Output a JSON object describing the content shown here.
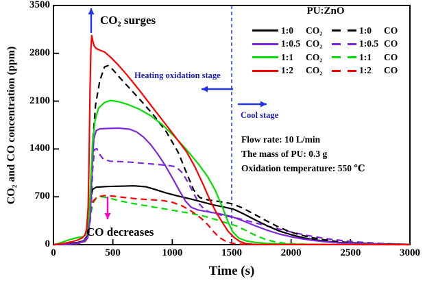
{
  "figure": {
    "xlabel": "Time (s)",
    "ylabel": "CO₂ and CO concentration (ppm)"
  },
  "legend": {
    "title": "PU:ZnO",
    "rows": [
      {
        "color": "#000000",
        "solid_label": "1:0",
        "solid_gas": "CO₂",
        "dashed_label": "1:0",
        "dashed_gas": "CO"
      },
      {
        "color": "#7D26DB",
        "solid_label": "1:0.5",
        "solid_gas": "CO₂",
        "dashed_label": "1:0.5",
        "dashed_gas": "CO"
      },
      {
        "color": "#00DF00",
        "solid_label": "1:1",
        "solid_gas": "CO₂",
        "dashed_label": "1:1",
        "dashed_gas": "CO"
      },
      {
        "color": "#FF0000",
        "solid_label": "1:2",
        "solid_gas": "CO₂",
        "dashed_label": "1:2",
        "dashed_gas": "CO"
      }
    ]
  },
  "annotations": {
    "co2_surges": "CO₂ surges",
    "heating_stage": "Heating oxidation stage",
    "cool_stage": "Cool stage",
    "co_decreases": "CO decreases",
    "arrow_color": "#2233EE",
    "co_arrow_color": "#FF00CC",
    "boundary_color": "#2B4BF2"
  },
  "info": {
    "lines": [
      "Flow rate: 10 L/min",
      "The mass of PU: 0.3 g",
      "Oxidation temperature: 550 ℃"
    ]
  },
  "chart_data": {
    "type": "line",
    "title": "",
    "xlabel": "Time (s)",
    "ylabel": "CO2 and CO concentration (ppm)",
    "xlim": [
      0,
      3000
    ],
    "ylim": [
      0,
      3500
    ],
    "xticks": [
      0,
      500,
      1000,
      1500,
      2000,
      2500,
      3000
    ],
    "yticks": [
      0,
      700,
      1400,
      2100,
      2800,
      3500
    ],
    "grid": false,
    "legend_position": "upper right",
    "stage_boundary_x": 1500,
    "series": [
      {
        "id": "ratio-1-1-co",
        "name": "1:1 CO",
        "color": "#00DF00",
        "style": "dashed",
        "points": [
          [
            0,
            0
          ],
          [
            200,
            15
          ],
          [
            270,
            50
          ],
          [
            295,
            160
          ],
          [
            310,
            400
          ],
          [
            330,
            600
          ],
          [
            360,
            680
          ],
          [
            410,
            700
          ],
          [
            470,
            680
          ],
          [
            560,
            640
          ],
          [
            660,
            605
          ],
          [
            760,
            575
          ],
          [
            860,
            545
          ],
          [
            960,
            515
          ],
          [
            1060,
            485
          ],
          [
            1160,
            455
          ],
          [
            1260,
            420
          ],
          [
            1360,
            370
          ],
          [
            1460,
            315
          ],
          [
            1530,
            280
          ],
          [
            1600,
            225
          ],
          [
            1660,
            170
          ],
          [
            1720,
            120
          ],
          [
            1780,
            80
          ],
          [
            1840,
            50
          ],
          [
            1900,
            30
          ],
          [
            1960,
            18
          ],
          [
            2040,
            10
          ],
          [
            2150,
            5
          ],
          [
            2400,
            2
          ],
          [
            3000,
            1
          ]
        ]
      },
      {
        "id": "ratio-1-2-co",
        "name": "1:2 CO",
        "color": "#FF0000",
        "style": "dashed",
        "points": [
          [
            0,
            0
          ],
          [
            150,
            6
          ],
          [
            250,
            25
          ],
          [
            285,
            90
          ],
          [
            300,
            280
          ],
          [
            315,
            520
          ],
          [
            335,
            640
          ],
          [
            370,
            700
          ],
          [
            430,
            718
          ],
          [
            520,
            706
          ],
          [
            620,
            685
          ],
          [
            720,
            668
          ],
          [
            820,
            657
          ],
          [
            920,
            645
          ],
          [
            1000,
            620
          ],
          [
            1080,
            570
          ],
          [
            1160,
            490
          ],
          [
            1240,
            390
          ],
          [
            1300,
            290
          ],
          [
            1350,
            185
          ],
          [
            1400,
            100
          ],
          [
            1450,
            48
          ],
          [
            1500,
            22
          ],
          [
            1560,
            8
          ],
          [
            1640,
            3
          ],
          [
            1800,
            1
          ],
          [
            3000,
            0
          ]
        ]
      },
      {
        "id": "ratio-1-0-5-co",
        "name": "1:0.5 CO",
        "color": "#7D26DB",
        "style": "dashed",
        "points": [
          [
            0,
            0
          ],
          [
            150,
            6
          ],
          [
            250,
            35
          ],
          [
            295,
            110
          ],
          [
            315,
            450
          ],
          [
            330,
            1100
          ],
          [
            345,
            1390
          ],
          [
            365,
            1405
          ],
          [
            385,
            1330
          ],
          [
            420,
            1250
          ],
          [
            480,
            1220
          ],
          [
            560,
            1215
          ],
          [
            660,
            1205
          ],
          [
            760,
            1190
          ],
          [
            860,
            1175
          ],
          [
            960,
            1160
          ],
          [
            1030,
            1140
          ],
          [
            1080,
            1060
          ],
          [
            1130,
            920
          ],
          [
            1180,
            750
          ],
          [
            1230,
            590
          ],
          [
            1280,
            500
          ],
          [
            1350,
            455
          ],
          [
            1450,
            420
          ],
          [
            1550,
            385
          ],
          [
            1650,
            340
          ],
          [
            1750,
            295
          ],
          [
            1850,
            250
          ],
          [
            1950,
            205
          ],
          [
            2050,
            165
          ],
          [
            2150,
            130
          ],
          [
            2250,
            100
          ],
          [
            2350,
            75
          ],
          [
            2450,
            55
          ],
          [
            2550,
            40
          ],
          [
            2650,
            28
          ],
          [
            2750,
            18
          ],
          [
            2850,
            11
          ],
          [
            3000,
            5
          ]
        ]
      },
      {
        "id": "ratio-1-0-co",
        "name": "1:0 CO",
        "color": "#000000",
        "style": "dashed",
        "points": [
          [
            0,
            0
          ],
          [
            150,
            8
          ],
          [
            250,
            45
          ],
          [
            285,
            130
          ],
          [
            300,
            350
          ],
          [
            315,
            900
          ],
          [
            330,
            1500
          ],
          [
            355,
            2050
          ],
          [
            390,
            2400
          ],
          [
            430,
            2600
          ],
          [
            460,
            2620
          ],
          [
            500,
            2560
          ],
          [
            560,
            2440
          ],
          [
            650,
            2270
          ],
          [
            750,
            2080
          ],
          [
            850,
            1880
          ],
          [
            950,
            1650
          ],
          [
            1050,
            1350
          ],
          [
            1120,
            1050
          ],
          [
            1180,
            800
          ],
          [
            1230,
            690
          ],
          [
            1300,
            655
          ],
          [
            1400,
            630
          ],
          [
            1500,
            600
          ],
          [
            1580,
            545
          ],
          [
            1680,
            455
          ],
          [
            1780,
            360
          ],
          [
            1880,
            270
          ],
          [
            1980,
            195
          ],
          [
            2080,
            140
          ],
          [
            2180,
            100
          ],
          [
            2280,
            70
          ],
          [
            2380,
            48
          ],
          [
            2500,
            28
          ],
          [
            2700,
            12
          ],
          [
            3000,
            4
          ]
        ]
      },
      {
        "id": "ratio-1-0-co2",
        "name": "1:0 CO₂",
        "color": "#000000",
        "style": "solid",
        "points": [
          [
            0,
            0
          ],
          [
            100,
            10
          ],
          [
            200,
            30
          ],
          [
            260,
            60
          ],
          [
            290,
            140
          ],
          [
            305,
            420
          ],
          [
            315,
            700
          ],
          [
            330,
            810
          ],
          [
            360,
            840
          ],
          [
            450,
            850
          ],
          [
            560,
            855
          ],
          [
            680,
            860
          ],
          [
            780,
            845
          ],
          [
            850,
            810
          ],
          [
            950,
            755
          ],
          [
            1050,
            710
          ],
          [
            1150,
            670
          ],
          [
            1250,
            625
          ],
          [
            1350,
            580
          ],
          [
            1450,
            545
          ],
          [
            1520,
            515
          ],
          [
            1600,
            450
          ],
          [
            1700,
            360
          ],
          [
            1800,
            275
          ],
          [
            1900,
            200
          ],
          [
            2000,
            145
          ],
          [
            2100,
            100
          ],
          [
            2200,
            70
          ],
          [
            2300,
            48
          ],
          [
            2400,
            32
          ],
          [
            2600,
            14
          ],
          [
            2800,
            6
          ],
          [
            3000,
            3
          ]
        ]
      },
      {
        "id": "ratio-1-0-5-co2",
        "name": "1:0.5 CO₂",
        "color": "#7D26DB",
        "style": "solid",
        "points": [
          [
            0,
            0
          ],
          [
            150,
            8
          ],
          [
            250,
            40
          ],
          [
            290,
            120
          ],
          [
            310,
            400
          ],
          [
            325,
            1100
          ],
          [
            340,
            1550
          ],
          [
            360,
            1670
          ],
          [
            390,
            1695
          ],
          [
            450,
            1700
          ],
          [
            550,
            1705
          ],
          [
            640,
            1690
          ],
          [
            700,
            1650
          ],
          [
            760,
            1570
          ],
          [
            820,
            1460
          ],
          [
            880,
            1320
          ],
          [
            940,
            1160
          ],
          [
            1000,
            980
          ],
          [
            1060,
            790
          ],
          [
            1110,
            640
          ],
          [
            1160,
            545
          ],
          [
            1220,
            505
          ],
          [
            1300,
            480
          ],
          [
            1400,
            450
          ],
          [
            1500,
            410
          ],
          [
            1600,
            345
          ],
          [
            1700,
            275
          ],
          [
            1800,
            210
          ],
          [
            1900,
            155
          ],
          [
            2000,
            115
          ],
          [
            2100,
            82
          ],
          [
            2200,
            58
          ],
          [
            2300,
            40
          ],
          [
            2400,
            27
          ],
          [
            2600,
            12
          ],
          [
            2800,
            5
          ],
          [
            3000,
            2
          ]
        ]
      },
      {
        "id": "ratio-1-1-co2",
        "name": "1:1 CO₂",
        "color": "#00DF00",
        "style": "solid",
        "points": [
          [
            0,
            0
          ],
          [
            40,
            15
          ],
          [
            90,
            45
          ],
          [
            150,
            80
          ],
          [
            210,
            105
          ],
          [
            250,
            115
          ],
          [
            280,
            160
          ],
          [
            300,
            420
          ],
          [
            315,
            1000
          ],
          [
            330,
            1500
          ],
          [
            350,
            1820
          ],
          [
            380,
            2000
          ],
          [
            430,
            2080
          ],
          [
            480,
            2110
          ],
          [
            540,
            2095
          ],
          [
            620,
            2055
          ],
          [
            720,
            1985
          ],
          [
            820,
            1885
          ],
          [
            920,
            1750
          ],
          [
            1020,
            1580
          ],
          [
            1120,
            1390
          ],
          [
            1220,
            1180
          ],
          [
            1300,
            990
          ],
          [
            1360,
            800
          ],
          [
            1420,
            560
          ],
          [
            1470,
            330
          ],
          [
            1510,
            185
          ],
          [
            1560,
            95
          ],
          [
            1620,
            55
          ],
          [
            1700,
            32
          ],
          [
            1800,
            18
          ],
          [
            1900,
            10
          ],
          [
            2000,
            6
          ],
          [
            2200,
            3
          ],
          [
            2500,
            1
          ],
          [
            3000,
            1
          ]
        ]
      },
      {
        "id": "ratio-1-2-co2",
        "name": "1:2 CO₂",
        "color": "#FF0000",
        "style": "solid",
        "points": [
          [
            0,
            0
          ],
          [
            80,
            15
          ],
          [
            150,
            40
          ],
          [
            200,
            65
          ],
          [
            240,
            95
          ],
          [
            265,
            140
          ],
          [
            280,
            240
          ],
          [
            292,
            550
          ],
          [
            300,
            1300
          ],
          [
            308,
            2300
          ],
          [
            315,
            2850
          ],
          [
            322,
            3060
          ],
          [
            330,
            2990
          ],
          [
            342,
            2910
          ],
          [
            360,
            2870
          ],
          [
            390,
            2845
          ],
          [
            430,
            2820
          ],
          [
            480,
            2745
          ],
          [
            540,
            2640
          ],
          [
            620,
            2480
          ],
          [
            720,
            2265
          ],
          [
            820,
            2040
          ],
          [
            920,
            1815
          ],
          [
            1020,
            1590
          ],
          [
            1120,
            1360
          ],
          [
            1190,
            1140
          ],
          [
            1260,
            880
          ],
          [
            1320,
            640
          ],
          [
            1370,
            470
          ],
          [
            1420,
            330
          ],
          [
            1470,
            195
          ],
          [
            1520,
            105
          ],
          [
            1570,
            45
          ],
          [
            1620,
            15
          ],
          [
            1680,
            5
          ],
          [
            1750,
            2
          ],
          [
            2000,
            1
          ],
          [
            3000,
            0
          ]
        ]
      }
    ]
  }
}
